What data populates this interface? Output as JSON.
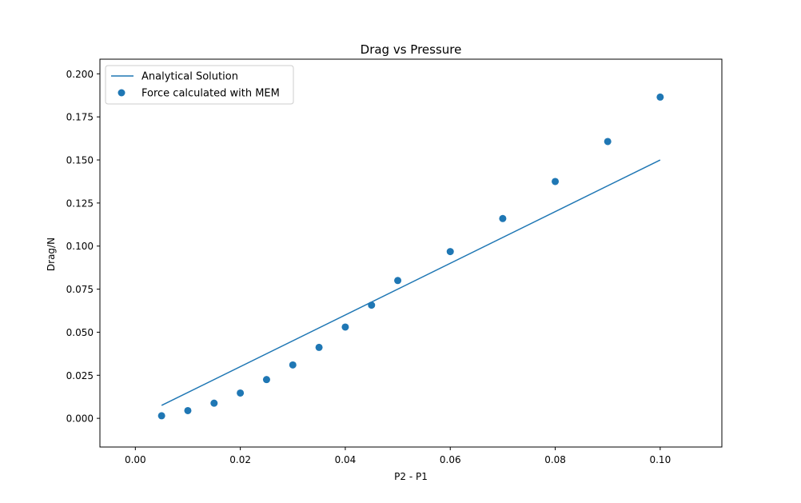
{
  "chart_data": {
    "type": "scatter",
    "title": "Drag vs Pressure",
    "xlabel": "P2 - P1",
    "ylabel": "Drag/N",
    "xlim": [
      -0.00675,
      0.11175
    ],
    "ylim": [
      -0.01665,
      0.2085
    ],
    "xticks": [
      0.0,
      0.02,
      0.04,
      0.06,
      0.08,
      0.1
    ],
    "xtick_labels": [
      "0.00",
      "0.02",
      "0.04",
      "0.06",
      "0.08",
      "0.10"
    ],
    "yticks": [
      0.0,
      0.025,
      0.05,
      0.075,
      0.1,
      0.125,
      0.15,
      0.175,
      0.2
    ],
    "ytick_labels": [
      "0.000",
      "0.025",
      "0.050",
      "0.075",
      "0.100",
      "0.125",
      "0.150",
      "0.175",
      "0.200"
    ],
    "grid": false,
    "legend_position": "top-left",
    "series": [
      {
        "name": "Analytical Solution",
        "kind": "line",
        "color": "#1f77b4",
        "x": [
          0.005,
          0.1
        ],
        "y": [
          0.0075,
          0.15
        ]
      },
      {
        "name": "Force calculated with MEM",
        "kind": "scatter",
        "color": "#1f77b4",
        "x": [
          0.005,
          0.01,
          0.015,
          0.02,
          0.025,
          0.03,
          0.035,
          0.04,
          0.045,
          0.05,
          0.06,
          0.07,
          0.08,
          0.09,
          0.1
        ],
        "y": [
          0.0015,
          0.0045,
          0.0088,
          0.0147,
          0.0225,
          0.031,
          0.0412,
          0.053,
          0.0657,
          0.08,
          0.0968,
          0.116,
          0.1375,
          0.1607,
          0.1865
        ]
      }
    ]
  }
}
